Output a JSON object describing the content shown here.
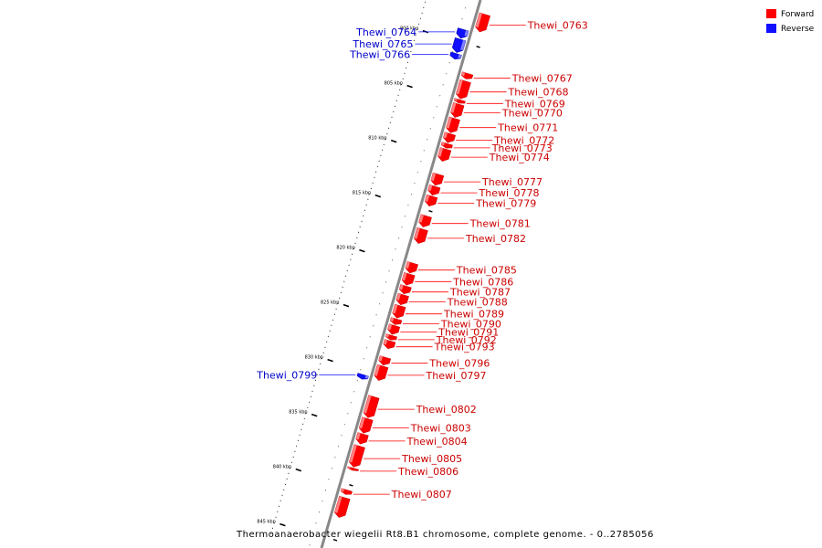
{
  "legend": [
    {
      "label": "Forward",
      "color": "#ff0000"
    },
    {
      "label": "Reverse",
      "color": "#1010ff"
    }
  ],
  "caption": "Thermoanaerobacter wiegelii Rt8.B1 chromosome, complete genome. - 0..2785056",
  "colors": {
    "forward": "#ff0000",
    "reverse": "#1010ff",
    "backbone": "#888888"
  },
  "ruler": [
    {
      "kbp": 800,
      "label": "800 kbp"
    },
    {
      "kbp": 805,
      "label": "805 kbp"
    },
    {
      "kbp": 810,
      "label": "810 kbp"
    },
    {
      "kbp": 815,
      "label": "815 kbp"
    },
    {
      "kbp": 820,
      "label": "820 kbp"
    },
    {
      "kbp": 825,
      "label": "825 kbp"
    },
    {
      "kbp": 830,
      "label": "830 kbp"
    },
    {
      "kbp": 835,
      "label": "835 kbp"
    },
    {
      "kbp": 840,
      "label": "840 kbp"
    },
    {
      "kbp": 845,
      "label": "845 kbp"
    }
  ],
  "genes": [
    {
      "name": "Thewi_0764",
      "strand": "reverse",
      "start_kbp": 798.9,
      "end_kbp": 799.7
    },
    {
      "name": "Thewi_0765",
      "strand": "reverse",
      "start_kbp": 799.8,
      "end_kbp": 801.0
    },
    {
      "name": "Thewi_0766",
      "strand": "reverse",
      "start_kbp": 801.1,
      "end_kbp": 801.6
    },
    {
      "name": "Thewi_0763",
      "strand": "forward",
      "start_kbp": 797.1,
      "end_kbp": 798.7
    },
    {
      "name": "Thewi_0767",
      "strand": "forward",
      "start_kbp": 802.5,
      "end_kbp": 803.0
    },
    {
      "name": "Thewi_0768",
      "strand": "forward",
      "start_kbp": 803.2,
      "end_kbp": 804.8
    },
    {
      "name": "Thewi_0769",
      "strand": "forward",
      "start_kbp": 804.9,
      "end_kbp": 805.2
    },
    {
      "name": "Thewi_0770",
      "strand": "forward",
      "start_kbp": 805.3,
      "end_kbp": 806.5
    },
    {
      "name": "Thewi_0771",
      "strand": "forward",
      "start_kbp": 806.6,
      "end_kbp": 807.9
    },
    {
      "name": "Thewi_0772",
      "strand": "forward",
      "start_kbp": 808.0,
      "end_kbp": 808.8
    },
    {
      "name": "Thewi_0773",
      "strand": "forward",
      "start_kbp": 808.9,
      "end_kbp": 809.3
    },
    {
      "name": "Thewi_0774",
      "strand": "forward",
      "start_kbp": 809.4,
      "end_kbp": 810.5
    },
    {
      "name": "Thewi_0777",
      "strand": "forward",
      "start_kbp": 811.7,
      "end_kbp": 812.7
    },
    {
      "name": "Thewi_0778",
      "strand": "forward",
      "start_kbp": 812.8,
      "end_kbp": 813.6
    },
    {
      "name": "Thewi_0779",
      "strand": "forward",
      "start_kbp": 813.7,
      "end_kbp": 814.6
    },
    {
      "name": "Thewi_0781",
      "strand": "forward",
      "start_kbp": 815.5,
      "end_kbp": 816.5
    },
    {
      "name": "Thewi_0782",
      "strand": "forward",
      "start_kbp": 816.7,
      "end_kbp": 818.0
    },
    {
      "name": "Thewi_0785",
      "strand": "forward",
      "start_kbp": 819.8,
      "end_kbp": 820.7
    },
    {
      "name": "Thewi_0786",
      "strand": "forward",
      "start_kbp": 820.8,
      "end_kbp": 821.8
    },
    {
      "name": "Thewi_0787",
      "strand": "forward",
      "start_kbp": 821.9,
      "end_kbp": 822.6
    },
    {
      "name": "Thewi_0788",
      "strand": "forward",
      "start_kbp": 822.7,
      "end_kbp": 823.6
    },
    {
      "name": "Thewi_0789",
      "strand": "forward",
      "start_kbp": 823.7,
      "end_kbp": 824.8
    },
    {
      "name": "Thewi_0790",
      "strand": "forward",
      "start_kbp": 824.9,
      "end_kbp": 825.4
    },
    {
      "name": "Thewi_0791",
      "strand": "forward",
      "start_kbp": 825.5,
      "end_kbp": 826.3
    },
    {
      "name": "Thewi_0792",
      "strand": "forward",
      "start_kbp": 826.4,
      "end_kbp": 826.8
    },
    {
      "name": "Thewi_0793",
      "strand": "forward",
      "start_kbp": 826.9,
      "end_kbp": 827.6
    },
    {
      "name": "Thewi_0799",
      "strand": "reverse",
      "start_kbp": 830.4,
      "end_kbp": 830.8
    },
    {
      "name": "Thewi_0796",
      "strand": "forward",
      "start_kbp": 828.4,
      "end_kbp": 829.1
    },
    {
      "name": "Thewi_0797",
      "strand": "forward",
      "start_kbp": 829.2,
      "end_kbp": 830.5
    },
    {
      "name": "Thewi_0802",
      "strand": "forward",
      "start_kbp": 832.0,
      "end_kbp": 833.9
    },
    {
      "name": "Thewi_0803",
      "strand": "forward",
      "start_kbp": 834.0,
      "end_kbp": 835.3
    },
    {
      "name": "Thewi_0804",
      "strand": "forward",
      "start_kbp": 835.4,
      "end_kbp": 836.3
    },
    {
      "name": "Thewi_0805",
      "strand": "forward",
      "start_kbp": 836.5,
      "end_kbp": 838.4
    },
    {
      "name": "Thewi_0806",
      "strand": "forward",
      "start_kbp": 838.5,
      "end_kbp": 838.7
    },
    {
      "name": "Thewi_0807",
      "strand": "forward",
      "start_kbp": 840.5,
      "end_kbp": 840.9
    },
    {
      "name": "",
      "strand": "forward",
      "start_kbp": 841.2,
      "end_kbp": 843.0
    }
  ]
}
